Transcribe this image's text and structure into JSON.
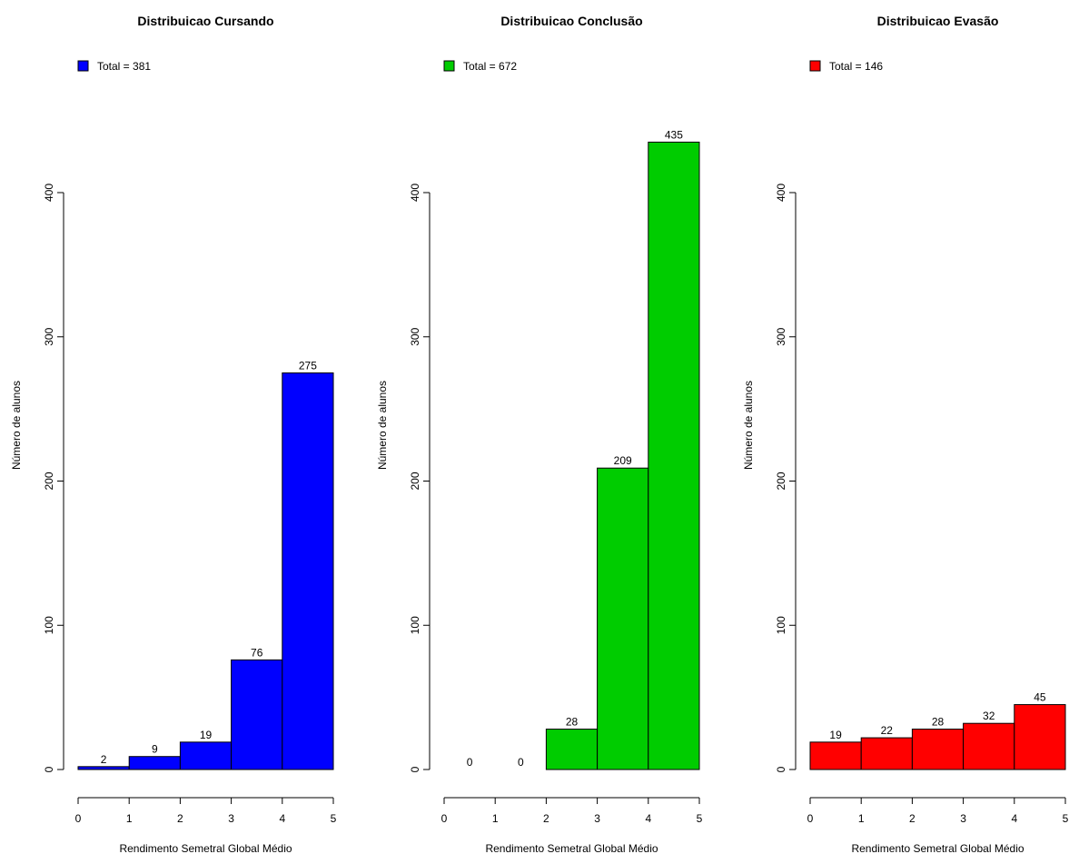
{
  "chart_data": [
    {
      "type": "histogram",
      "title": "Distribuicao Cursando",
      "xlabel": "Rendimento Semetral Global Médio",
      "ylabel": "Número de alunos",
      "bins": [
        0,
        1,
        2,
        3,
        4,
        5
      ],
      "series": [
        {
          "name": "Total = 381",
          "color": "#0000ff",
          "values": [
            2,
            9,
            19,
            76,
            275
          ]
        }
      ],
      "xlim": [
        0,
        5
      ],
      "xticks": [
        0,
        1,
        2,
        3,
        4,
        5
      ],
      "ylim": [
        0,
        400
      ],
      "yticks": [
        0,
        100,
        200,
        300,
        400
      ]
    },
    {
      "type": "histogram",
      "title": "Distribuicao Conclusão",
      "xlabel": "Rendimento Semetral Global Médio",
      "ylabel": "Número de alunos",
      "bins": [
        0,
        1,
        2,
        3,
        4,
        5
      ],
      "series": [
        {
          "name": "Total = 672",
          "color": "#00cc00",
          "values": [
            0,
            0,
            28,
            209,
            435
          ]
        }
      ],
      "xlim": [
        0,
        5
      ],
      "xticks": [
        0,
        1,
        2,
        3,
        4,
        5
      ],
      "ylim": [
        0,
        400
      ],
      "yticks": [
        0,
        100,
        200,
        300,
        400
      ]
    },
    {
      "type": "histogram",
      "title": "Distribuicao Evasão",
      "xlabel": "Rendimento Semetral Global Médio",
      "ylabel": "Número de alunos",
      "bins": [
        0,
        1,
        2,
        3,
        4,
        5
      ],
      "series": [
        {
          "name": "Total = 146",
          "color": "#ff0000",
          "values": [
            19,
            22,
            28,
            32,
            45
          ]
        }
      ],
      "xlim": [
        0,
        5
      ],
      "xticks": [
        0,
        1,
        2,
        3,
        4,
        5
      ],
      "ylim": [
        0,
        400
      ],
      "yticks": [
        0,
        100,
        200,
        300,
        400
      ]
    }
  ]
}
